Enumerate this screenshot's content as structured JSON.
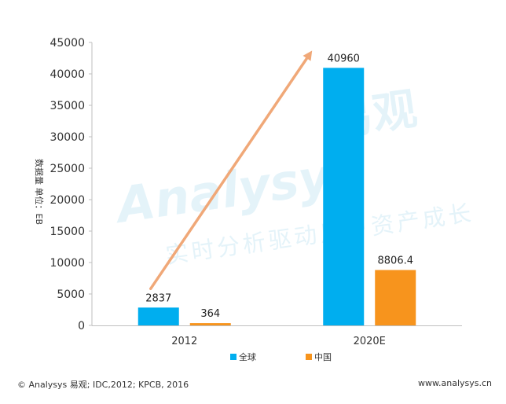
{
  "chart_data": {
    "type": "bar",
    "categories": [
      "2012",
      "2020E"
    ],
    "series": [
      {
        "name": "全球",
        "values": [
          2837,
          40960
        ],
        "color": "#00aeef"
      },
      {
        "name": "中国",
        "values": [
          364,
          8806.4
        ],
        "color": "#f7941d"
      }
    ],
    "data_labels": [
      [
        "2837",
        "364"
      ],
      [
        "40960",
        "8806.4"
      ]
    ],
    "ylabel": "数据量  单位：EB",
    "ylim": [
      0,
      45000
    ],
    "yticks": [
      0,
      5000,
      10000,
      15000,
      20000,
      25000,
      30000,
      35000,
      40000,
      45000
    ],
    "grid": false,
    "legend": "bottom-center",
    "trend_arrow": {
      "from_category": "2012",
      "to_category": "2020E",
      "color": "#f0a878"
    }
  },
  "watermark": {
    "logo_text": "Analysys",
    "brand_text": "易观",
    "slogan": "实时分析驱动用户资产成长"
  },
  "footer": {
    "source": "© Analysys 易观;  IDC,2012;  KPCB, 2016",
    "website": "www.analysys.cn"
  }
}
